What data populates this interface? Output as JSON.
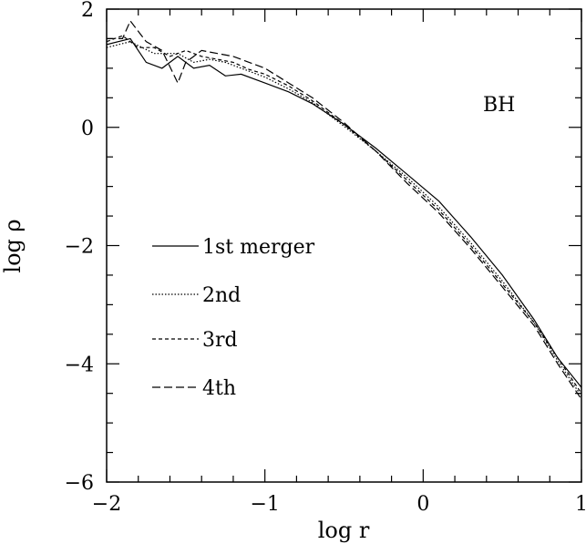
{
  "chart_data": {
    "type": "line",
    "title": "",
    "xlabel": "log r",
    "ylabel": "log ρ",
    "xlim": [
      -2,
      1
    ],
    "ylim": [
      -6,
      2
    ],
    "xticks": [
      -2,
      -1,
      0,
      1
    ],
    "xtick_labels": [
      "−2",
      "−1",
      "0",
      "1"
    ],
    "yticks": [
      -6,
      -4,
      -2,
      0,
      2
    ],
    "ytick_labels": [
      "−6",
      "−4",
      "−2",
      "0",
      "2"
    ],
    "x_minor_step": 0.2,
    "y_minor_step": 0.5,
    "annotation": "BH",
    "legend_placement": "left",
    "series": [
      {
        "name": "1st merger",
        "dash": "solid",
        "x": [
          -2.0,
          -1.85,
          -1.75,
          -1.65,
          -1.55,
          -1.45,
          -1.35,
          -1.25,
          -1.15,
          -1.0,
          -0.85,
          -0.7,
          -0.5,
          -0.3,
          -0.1,
          0.1,
          0.3,
          0.5,
          0.7,
          0.85,
          1.0
        ],
        "y": [
          1.4,
          1.5,
          1.1,
          1.0,
          1.2,
          1.0,
          1.05,
          0.87,
          0.9,
          0.75,
          0.6,
          0.4,
          0.05,
          -0.35,
          -0.8,
          -1.25,
          -1.85,
          -2.5,
          -3.25,
          -3.9,
          -4.4
        ]
      },
      {
        "name": "2nd",
        "dash": "dotted",
        "x": [
          -2.0,
          -1.85,
          -1.7,
          -1.55,
          -1.45,
          -1.35,
          -1.25,
          -1.15,
          -1.0,
          -0.85,
          -0.7,
          -0.5,
          -0.3,
          -0.1,
          0.1,
          0.3,
          0.5,
          0.7,
          0.85,
          1.0
        ],
        "y": [
          1.35,
          1.45,
          1.25,
          1.25,
          1.1,
          1.15,
          1.1,
          1.0,
          0.85,
          0.65,
          0.42,
          0.02,
          -0.4,
          -0.85,
          -1.35,
          -1.95,
          -2.6,
          -3.3,
          -3.95,
          -4.55
        ]
      },
      {
        "name": "3rd",
        "dash": "short-dash",
        "x": [
          -2.0,
          -1.9,
          -1.8,
          -1.7,
          -1.6,
          -1.5,
          -1.4,
          -1.3,
          -1.2,
          -1.1,
          -1.0,
          -0.85,
          -0.7,
          -0.5,
          -0.3,
          -0.1,
          0.1,
          0.3,
          0.5,
          0.7,
          0.85,
          1.0
        ],
        "y": [
          1.45,
          1.55,
          1.35,
          1.35,
          1.2,
          1.3,
          1.2,
          1.15,
          1.1,
          0.98,
          0.9,
          0.7,
          0.45,
          0.05,
          -0.4,
          -0.9,
          -1.4,
          -2.0,
          -2.65,
          -3.3,
          -3.9,
          -4.5
        ]
      },
      {
        "name": "4th",
        "dash": "long-dash",
        "x": [
          -2.0,
          -1.9,
          -1.85,
          -1.75,
          -1.65,
          -1.55,
          -1.5,
          -1.4,
          -1.3,
          -1.2,
          -1.1,
          -1.0,
          -0.85,
          -0.7,
          -0.5,
          -0.3,
          -0.1,
          0.1,
          0.3,
          0.5,
          0.7,
          0.85,
          1.0
        ],
        "y": [
          1.5,
          1.5,
          1.8,
          1.45,
          1.3,
          0.75,
          1.1,
          1.3,
          1.25,
          1.2,
          1.1,
          1.0,
          0.75,
          0.5,
          0.08,
          -0.4,
          -0.95,
          -1.45,
          -2.05,
          -2.7,
          -3.35,
          -4.0,
          -4.6
        ]
      }
    ]
  }
}
